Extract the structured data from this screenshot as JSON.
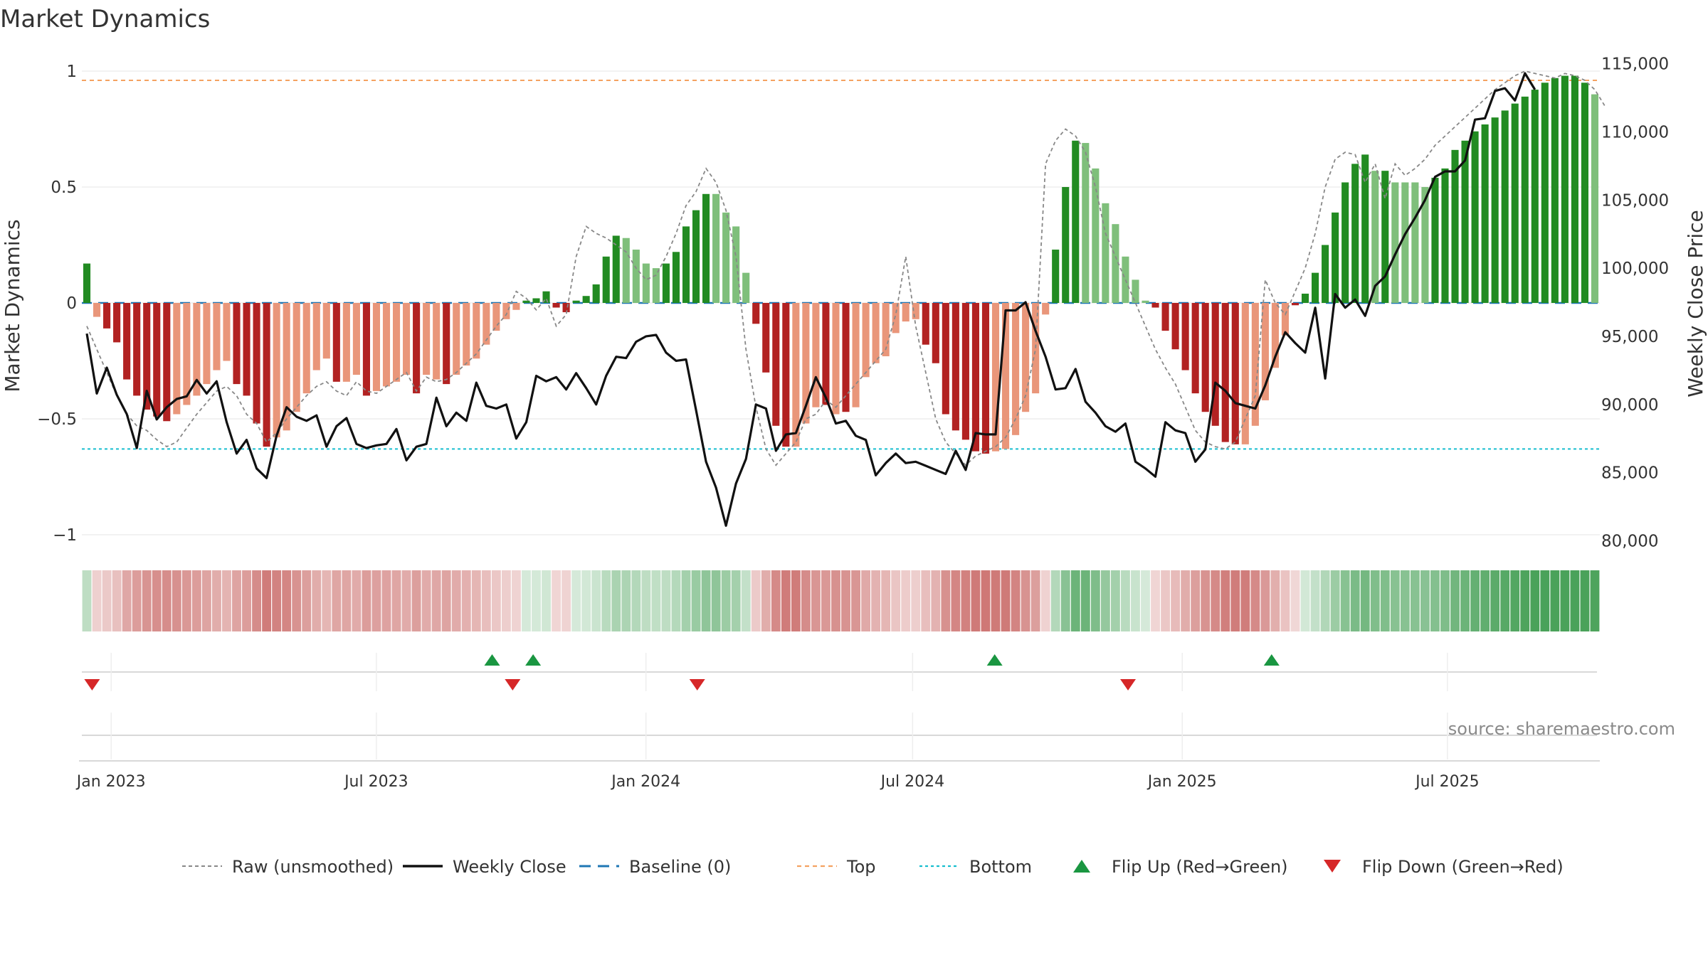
{
  "chart_data": {
    "type": "bar",
    "title": "Market Dynamics",
    "ylabel": "Market Dynamics",
    "y2label": "Weekly Close Price",
    "ylim": [
      -1.05,
      1.05
    ],
    "y2lim": [
      79500,
      115500
    ],
    "yticks": [
      1,
      0.5,
      0,
      -0.5,
      -1
    ],
    "ytick_labels": [
      "1",
      "0.5",
      "0",
      "−0.5",
      "−1"
    ],
    "y2ticks": [
      115000,
      110000,
      105000,
      100000,
      95000,
      90000,
      85000,
      80000
    ],
    "y2tick_labels": [
      "115,000",
      "110,000",
      "105,000",
      "100,000",
      "95,000",
      "90,000",
      "85,000",
      "80,000"
    ],
    "xticks": [
      {
        "date": "2023-01-01",
        "label": "Jan 2023"
      },
      {
        "date": "2023-07-01",
        "label": "Jul 2023"
      },
      {
        "date": "2024-01-01",
        "label": "Jan 2024"
      },
      {
        "date": "2024-07-01",
        "label": "Jul 2024"
      },
      {
        "date": "2025-01-01",
        "label": "Jan 2025"
      },
      {
        "date": "2025-07-01",
        "label": "Jul 2025"
      }
    ],
    "x_start": "2022-12-12",
    "x_end": "2025-10-13",
    "top_level": 0.96,
    "bottom_level": -0.63,
    "baseline": 0,
    "source": "source: sharemaestro.com",
    "colors": {
      "green_strong": "#228b22",
      "green_weak": "#7fbf7b",
      "red_strong": "#b22222",
      "red_weak": "#e9967a",
      "close": "#111111",
      "raw": "#888888",
      "baseline": "#1f77b4",
      "top": "#f4a261",
      "bottom": "#17becf",
      "flip_up": "#1a9641",
      "flip_down": "#d62728",
      "strip_green": "#4aa25a",
      "strip_red": "#c0504d"
    },
    "dynamics": [
      0.17,
      -0.06,
      -0.11,
      -0.17,
      -0.33,
      -0.4,
      -0.46,
      -0.49,
      -0.51,
      -0.48,
      -0.44,
      -0.4,
      -0.35,
      -0.29,
      -0.25,
      -0.35,
      -0.4,
      -0.52,
      -0.62,
      -0.58,
      -0.55,
      -0.47,
      -0.39,
      -0.29,
      -0.24,
      -0.34,
      -0.34,
      -0.31,
      -0.4,
      -0.38,
      -0.36,
      -0.34,
      -0.31,
      -0.39,
      -0.31,
      -0.33,
      -0.35,
      -0.31,
      -0.27,
      -0.24,
      -0.18,
      -0.12,
      -0.07,
      -0.03,
      0.01,
      0.02,
      0.05,
      -0.02,
      -0.04,
      0.01,
      0.03,
      0.08,
      0.2,
      0.29,
      0.28,
      0.23,
      0.17,
      0.15,
      0.17,
      0.22,
      0.33,
      0.4,
      0.47,
      0.47,
      0.39,
      0.33,
      0.13,
      -0.09,
      -0.3,
      -0.53,
      -0.62,
      -0.62,
      -0.52,
      -0.45,
      -0.44,
      -0.48,
      -0.47,
      -0.45,
      -0.32,
      -0.26,
      -0.23,
      -0.13,
      -0.08,
      -0.07,
      -0.18,
      -0.26,
      -0.48,
      -0.55,
      -0.59,
      -0.64,
      -0.65,
      -0.64,
      -0.63,
      -0.57,
      -0.47,
      -0.39,
      -0.05,
      0.23,
      0.5,
      0.7,
      0.69,
      0.58,
      0.43,
      0.34,
      0.2,
      0.1,
      0.01,
      -0.02,
      -0.12,
      -0.2,
      -0.29,
      -0.39,
      -0.47,
      -0.53,
      -0.6,
      -0.61,
      -0.61,
      -0.53,
      -0.42,
      -0.28,
      -0.14,
      -0.01,
      0.04,
      0.13,
      0.25,
      0.39,
      0.52,
      0.6,
      0.64,
      0.57,
      0.57,
      0.52,
      0.52,
      0.52,
      0.5,
      0.54,
      0.58,
      0.66,
      0.7,
      0.74,
      0.77,
      0.8,
      0.83,
      0.86,
      0.89,
      0.92,
      0.95,
      0.97,
      0.98,
      0.98,
      0.95,
      0.9
    ],
    "strong": [
      1,
      0,
      1,
      1,
      1,
      1,
      1,
      1,
      1,
      0,
      0,
      0,
      0,
      0,
      0,
      1,
      1,
      1,
      1,
      0,
      0,
      0,
      0,
      0,
      0,
      1,
      0,
      0,
      1,
      0,
      0,
      0,
      0,
      1,
      0,
      0,
      1,
      0,
      0,
      0,
      0,
      0,
      0,
      0,
      1,
      1,
      1,
      1,
      1,
      1,
      1,
      1,
      1,
      1,
      0,
      0,
      0,
      0,
      1,
      1,
      1,
      1,
      1,
      0,
      0,
      0,
      0,
      1,
      1,
      1,
      1,
      0,
      0,
      0,
      1,
      0,
      1,
      0,
      0,
      0,
      0,
      0,
      0,
      0,
      1,
      1,
      1,
      1,
      1,
      1,
      1,
      0,
      0,
      0,
      0,
      0,
      0,
      1,
      1,
      1,
      0,
      0,
      0,
      0,
      0,
      0,
      0,
      1,
      1,
      1,
      1,
      1,
      1,
      1,
      1,
      1,
      0,
      0,
      0,
      0,
      0,
      1,
      1,
      1,
      1,
      1,
      1,
      1,
      1,
      0,
      1,
      0,
      0,
      0,
      0,
      1,
      1,
      1,
      1,
      1,
      1,
      1,
      1,
      1,
      1,
      1,
      1,
      1,
      1,
      1,
      1,
      0
    ],
    "raw": [
      -0.1,
      -0.2,
      -0.3,
      -0.4,
      -0.48,
      -0.53,
      -0.55,
      -0.59,
      -0.62,
      -0.6,
      -0.54,
      -0.48,
      -0.43,
      -0.38,
      -0.36,
      -0.4,
      -0.48,
      -0.52,
      -0.6,
      -0.56,
      -0.5,
      -0.45,
      -0.4,
      -0.36,
      -0.34,
      -0.38,
      -0.4,
      -0.34,
      -0.38,
      -0.39,
      -0.36,
      -0.33,
      -0.3,
      -0.38,
      -0.32,
      -0.34,
      -0.33,
      -0.3,
      -0.26,
      -0.22,
      -0.16,
      -0.1,
      -0.05,
      0.05,
      0.02,
      -0.03,
      0.02,
      -0.1,
      -0.05,
      0.2,
      0.33,
      0.3,
      0.28,
      0.25,
      0.22,
      0.15,
      0.1,
      0.12,
      0.2,
      0.3,
      0.42,
      0.48,
      0.58,
      0.52,
      0.4,
      0.2,
      -0.2,
      -0.45,
      -0.63,
      -0.7,
      -0.65,
      -0.6,
      -0.5,
      -0.48,
      -0.42,
      -0.45,
      -0.4,
      -0.35,
      -0.3,
      -0.25,
      -0.2,
      -0.05,
      0.2,
      -0.1,
      -0.3,
      -0.5,
      -0.6,
      -0.65,
      -0.7,
      -0.66,
      -0.64,
      -0.62,
      -0.58,
      -0.5,
      -0.4,
      -0.2,
      0.6,
      0.7,
      0.75,
      0.72,
      0.65,
      0.5,
      0.3,
      0.2,
      0.1,
      0.0,
      -0.1,
      -0.2,
      -0.28,
      -0.35,
      -0.45,
      -0.55,
      -0.6,
      -0.62,
      -0.63,
      -0.6,
      -0.5,
      -0.4,
      0.1,
      0.0,
      -0.05,
      0.05,
      0.15,
      0.3,
      0.5,
      0.62,
      0.65,
      0.64,
      0.52,
      0.6,
      0.45,
      0.6,
      0.55,
      0.58,
      0.62,
      0.68,
      0.72,
      0.76,
      0.8,
      0.84,
      0.88,
      0.92,
      0.95,
      0.98,
      1.0,
      0.99,
      0.98,
      0.97,
      0.99,
      0.98,
      0.96,
      0.92,
      0.85
    ],
    "close": [
      95200,
      90800,
      92700,
      90700,
      89300,
      86800,
      91000,
      88900,
      89800,
      90400,
      90600,
      91800,
      90800,
      91700,
      88700,
      86400,
      87400,
      85300,
      84600,
      87700,
      89800,
      89100,
      88800,
      89200,
      86900,
      88400,
      89000,
      87100,
      86800,
      87000,
      87100,
      88200,
      85900,
      86900,
      87100,
      90500,
      88400,
      89400,
      88800,
      91600,
      89900,
      89700,
      90000,
      87500,
      88700,
      92100,
      91700,
      92000,
      91100,
      92300,
      91200,
      90000,
      92100,
      93500,
      93400,
      94600,
      95000,
      95100,
      93800,
      93200,
      93300,
      89600,
      85800,
      83900,
      81100,
      84200,
      86000,
      90000,
      89700,
      86600,
      87800,
      87900,
      89900,
      92000,
      90500,
      88600,
      88800,
      87700,
      87400,
      84800,
      85700,
      86400,
      85700,
      85800,
      85500,
      85200,
      84900,
      86600,
      85200,
      87900,
      87800,
      87800,
      96900,
      96900,
      97500,
      95400,
      93500,
      91100,
      91200,
      92600,
      90200,
      89400,
      88400,
      88000,
      88600,
      85800,
      85300,
      84700,
      88700,
      88100,
      87900,
      85800,
      86700,
      91600,
      91000,
      90100,
      89900,
      89700,
      91400,
      93500,
      95300,
      94500,
      93800,
      97100,
      91900,
      98100,
      97100,
      97700,
      96500,
      98700,
      99400,
      101000,
      102500,
      103700,
      105000,
      106700,
      107100,
      107100,
      107900,
      110900,
      111000,
      113000,
      113200,
      112300,
      114300,
      113100
    ],
    "flips_up": [
      "2023-09-18",
      "2023-10-16",
      "2024-08-26",
      "2025-03-03"
    ],
    "flips_down": [
      "2022-12-19",
      "2023-10-02",
      "2024-02-05",
      "2024-11-25"
    ],
    "legend": [
      {
        "kind": "raw",
        "label": "Raw (unsmoothed)"
      },
      {
        "kind": "close",
        "label": "Weekly Close"
      },
      {
        "kind": "baseline",
        "label": "Baseline (0)"
      },
      {
        "kind": "top",
        "label": "Top"
      },
      {
        "kind": "bottom",
        "label": "Bottom"
      },
      {
        "kind": "flip_up",
        "label": "Flip Up (Red→Green)"
      },
      {
        "kind": "flip_down",
        "label": "Flip Down (Green→Red)"
      }
    ]
  }
}
